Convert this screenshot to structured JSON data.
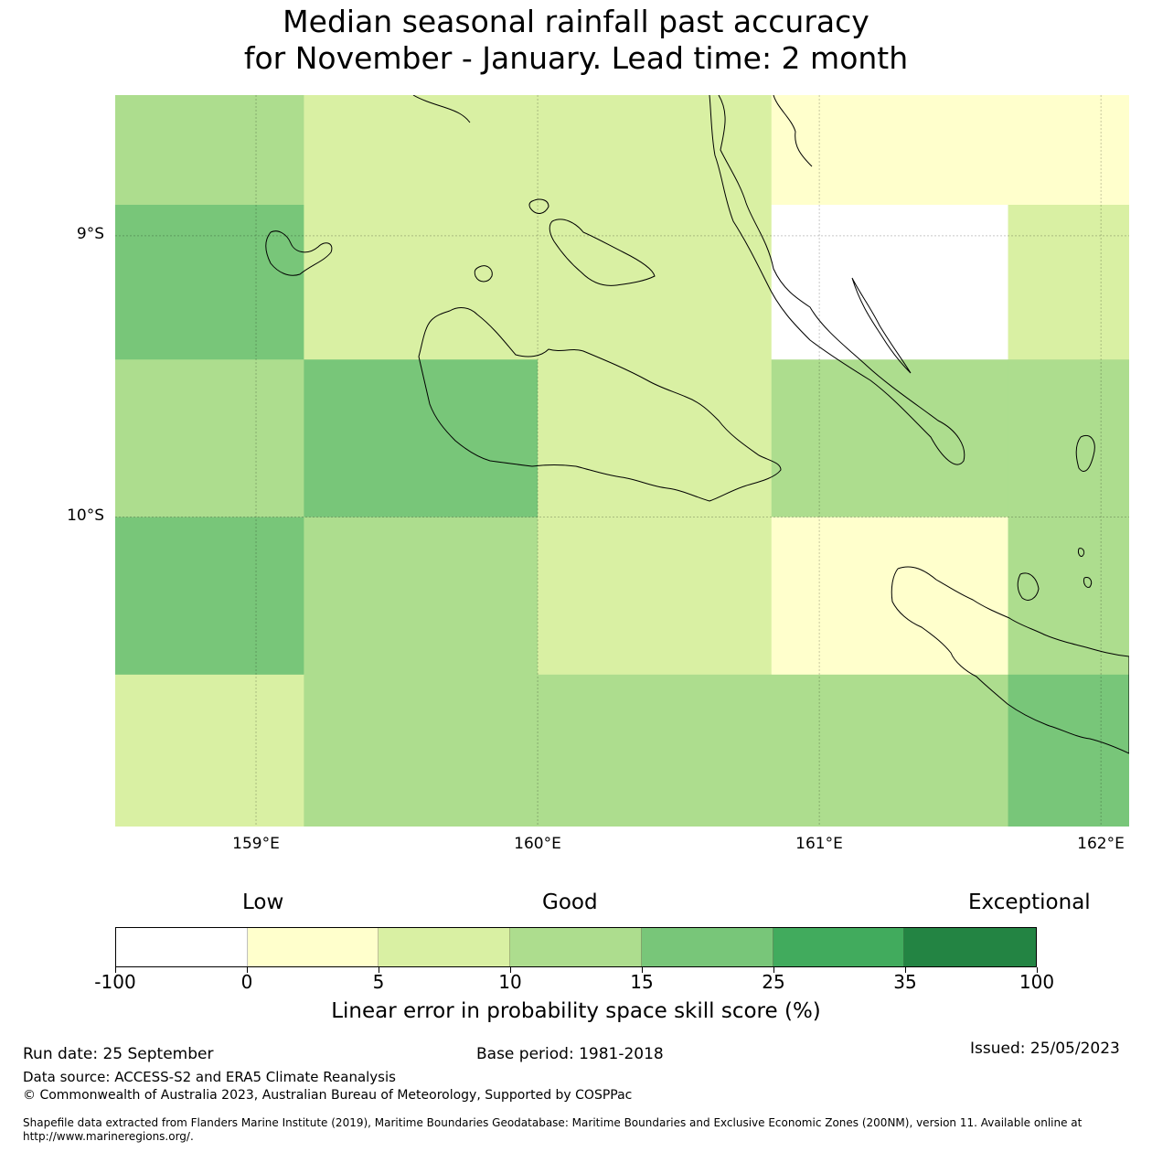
{
  "title": {
    "line1": "Median seasonal rainfall past accuracy",
    "line2": "for November - January. Lead time: 2 month"
  },
  "map": {
    "lon_range": [
      158.5,
      162.1
    ],
    "lat_range": [
      -11.1,
      -8.5
    ],
    "lon_ticks": [
      {
        "value": 159,
        "label": "159°E"
      },
      {
        "value": 160,
        "label": "160°E"
      },
      {
        "value": 161,
        "label": "161°E"
      },
      {
        "value": 162,
        "label": "162°E"
      }
    ],
    "lat_ticks": [
      {
        "value": -9,
        "label": "9°S"
      },
      {
        "value": -10,
        "label": "10°S"
      }
    ],
    "grid_cells": {
      "lon_edges": [
        158.5,
        159.17,
        160.0,
        160.83,
        161.67,
        162.1
      ],
      "lat_edges": [
        -8.5,
        -8.89,
        -9.44,
        -10.0,
        -10.56,
        -11.1
      ],
      "category_rows": [
        [
          3,
          2,
          2,
          1,
          1
        ],
        [
          4,
          2,
          2,
          0,
          2
        ],
        [
          3,
          4,
          2,
          3,
          3
        ],
        [
          4,
          3,
          2,
          1,
          3
        ],
        [
          2,
          3,
          3,
          3,
          4
        ]
      ]
    },
    "features": [
      {
        "name": "Guadalcanal",
        "type": "island"
      },
      {
        "name": "Malaita",
        "type": "island"
      },
      {
        "name": "Makira",
        "type": "island"
      },
      {
        "name": "Nggela",
        "type": "island"
      },
      {
        "name": "Russell Islands",
        "type": "island"
      }
    ]
  },
  "colorbar": {
    "label_low": "Low",
    "label_good": "Good",
    "label_exceptional": "Exceptional",
    "title": "Linear error in probability space skill score (%)",
    "bins": [
      {
        "from": -100,
        "to": 0,
        "color": "#ffffff"
      },
      {
        "from": 0,
        "to": 5,
        "color": "#ffffcc"
      },
      {
        "from": 5,
        "to": 10,
        "color": "#d9f0a3"
      },
      {
        "from": 10,
        "to": 15,
        "color": "#addd8e"
      },
      {
        "from": 15,
        "to": 25,
        "color": "#78c679"
      },
      {
        "from": 25,
        "to": 35,
        "color": "#41ab5d"
      },
      {
        "from": 35,
        "to": 100,
        "color": "#238443"
      }
    ],
    "tick_labels": [
      "-100",
      "0",
      "5",
      "10",
      "15",
      "25",
      "35",
      "100"
    ]
  },
  "footer": {
    "run_date": "Run date: 25 September",
    "base_period": "Base period: 1981-2018",
    "issued": "Issued: 25/05/2023",
    "data_source": "Data source: ACCESS-S2 and ERA5 Climate Reanalysis",
    "copyright": "© Commonwealth of Australia 2023, Australian Bureau of Meteorology, Supported by COSPPac",
    "shapefile_1": "Shapefile data extracted from Flanders Marine Institute (2019), Maritime Boundaries Geodatabase: Maritime Boundaries and Exclusive Economic Zones (200NM), version 11. Available online at",
    "shapefile_2": "http://www.marineregions.org/."
  }
}
